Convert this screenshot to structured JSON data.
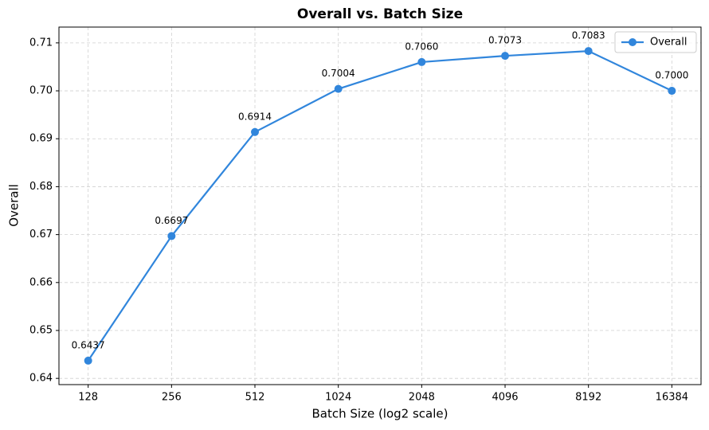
{
  "chart_data": {
    "type": "line",
    "title": "Overall vs. Batch Size",
    "x_label": "Batch Size (log2 scale)",
    "y_label": "Overall",
    "x": [
      128,
      256,
      512,
      1024,
      2048,
      4096,
      8192,
      16384
    ],
    "xscale": "log2",
    "series": [
      {
        "name": "Overall",
        "color": "#3186dc",
        "values": [
          0.6437,
          0.6697,
          0.6914,
          0.7004,
          0.706,
          0.7073,
          0.7083,
          0.7
        ],
        "value_labels": [
          "0.6437",
          "0.6697",
          "0.6914",
          "0.7004",
          "0.7060",
          "0.7073",
          "0.7083",
          "0.7000"
        ]
      }
    ],
    "xlim": [
      100.4,
      20883
    ],
    "xticks": [
      128,
      256,
      512,
      1024,
      2048,
      4096,
      8192,
      16384
    ],
    "ylim": [
      0.6387,
      0.7133
    ],
    "yticks": [
      0.64,
      0.65,
      0.66,
      0.67,
      0.68,
      0.69,
      {
        "value": 0.7,
        "label": "0.70"
      },
      0.71
    ],
    "grid": true,
    "legend": "upper right"
  }
}
